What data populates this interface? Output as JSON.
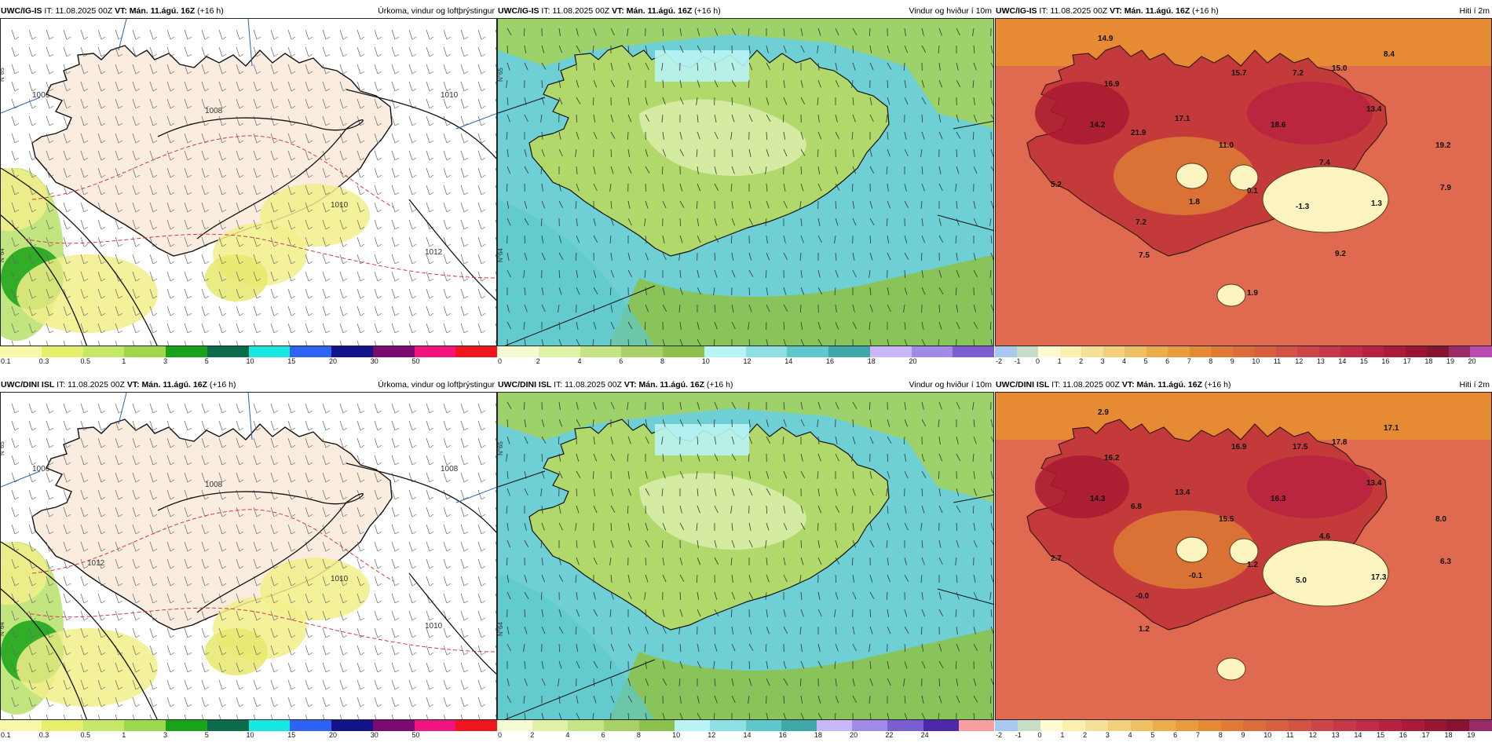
{
  "rows": [
    {
      "model_label": "UWC/IG-IS",
      "it_text": "IT: 11.08.2025 00Z",
      "vt_label": "VT:",
      "vt_text": "Mán. 11.ágú. 16Z",
      "lead_text": "(+16 h)",
      "temp_labels": [
        "14.9",
        "16.9",
        "14.2",
        "21.9",
        "17.1",
        "15.7",
        "7.2",
        "15.0",
        "8.4",
        "13.4",
        "18.6",
        "11.0",
        "19.2",
        "7.4",
        "5.2",
        "1.8",
        "0.1",
        "-1.3",
        "1.3",
        "7.9",
        "7.2",
        "7.5",
        "9.2",
        "1.9"
      ],
      "isobar_labels": [
        "1006",
        "1008",
        "1010",
        "1010",
        "1012"
      ]
    },
    {
      "model_label": "UWC/DINI ISL",
      "it_text": "IT: 11.08.2025 00Z",
      "vt_label": "VT:",
      "vt_text": "Mán. 11.ágú. 16Z",
      "lead_text": "(+16 h)",
      "temp_labels": [
        "2.9",
        "16.2",
        "14.3",
        "6.8",
        "13.4",
        "16.9",
        "17.5",
        "17.8",
        "17.1",
        "13.4",
        "16.3",
        "15.5",
        "8.0",
        "4.6",
        "2.7",
        "-0.1",
        "1.2",
        "5.0",
        "17.3",
        "6.3",
        "-0.0",
        "1.2"
      ],
      "isobar_labels": [
        "1006",
        "1008",
        "1008",
        "1010",
        "1010",
        "1012"
      ]
    }
  ],
  "columns": [
    {
      "field_title": "Úrkoma, vindur og loftþrýstingur",
      "colorbar": {
        "labels": [
          "0.1",
          "0.3",
          "0.5",
          "1",
          "3",
          "5",
          "10",
          "15",
          "20",
          "30",
          "50"
        ],
        "colors": [
          "#f7f7a8",
          "#e6ee6c",
          "#c6e86a",
          "#9ed84c",
          "#18a318",
          "#0b6b4a",
          "#17e8e0",
          "#2d62f2",
          "#14148a",
          "#7a0a70",
          "#f01480",
          "#f0141e"
        ]
      }
    },
    {
      "field_title": "Vindur og hviður í 10m",
      "colorbar_top": {
        "labels": [
          "0",
          "2",
          "4",
          "6",
          "8",
          "10",
          "12",
          "14",
          "16",
          "18",
          "20"
        ],
        "colors": [
          "#f4fbd2",
          "#dff2a8",
          "#c4e486",
          "#a8d268",
          "#8cc24c",
          "#b8f4f4",
          "#8ee0e6",
          "#5ec8cc",
          "#3ea8aa",
          "#c8b8f8",
          "#a08ae8",
          "#7a5ed2"
        ]
      },
      "colorbar_bottom": {
        "labels": [
          "0",
          "2",
          "4",
          "6",
          "8",
          "10",
          "12",
          "14",
          "16",
          "18",
          "20",
          "22",
          "24"
        ],
        "colors": [
          "#f4fbd2",
          "#dff2a8",
          "#c4e486",
          "#a8d268",
          "#8cc24c",
          "#b8f4f4",
          "#8ee0e6",
          "#5ec8cc",
          "#3ea8aa",
          "#c8b8f8",
          "#a08ae8",
          "#7a5ed2",
          "#4a2aa8",
          "#f8a0a0"
        ]
      }
    },
    {
      "field_title": "Hiti í 2m",
      "colorbar_top": {
        "labels": [
          "-2",
          "-1",
          "0",
          "1",
          "2",
          "3",
          "4",
          "5",
          "6",
          "7",
          "8",
          "9",
          "10",
          "11",
          "12",
          "13",
          "14",
          "15",
          "16",
          "17",
          "18",
          "19",
          "20"
        ],
        "colors": [
          "#a8c8f0",
          "#c8dcc8",
          "#fffbd0",
          "#fcf0b0",
          "#f6e096",
          "#f2d07c",
          "#eec064",
          "#ecae4c",
          "#e89c3c",
          "#e48a34",
          "#e07a34",
          "#dc6c3a",
          "#d86040",
          "#d25244",
          "#cc4448",
          "#c6384a",
          "#c02c46",
          "#b82240",
          "#ac1a3a",
          "#981634",
          "#861430",
          "#9a2a6a",
          "#b84ab0"
        ]
      },
      "colorbar_bottom": {
        "labels": [
          "-2",
          "-1",
          "0",
          "1",
          "2",
          "3",
          "4",
          "5",
          "6",
          "7",
          "8",
          "9",
          "10",
          "11",
          "12",
          "13",
          "14",
          "15",
          "16",
          "17",
          "18",
          "19"
        ],
        "colors": [
          "#a8c8f0",
          "#c8dcc8",
          "#fffbd0",
          "#fcf0b0",
          "#f6e096",
          "#f2d07c",
          "#eec064",
          "#ecae4c",
          "#e89c3c",
          "#e48a34",
          "#e07a34",
          "#dc6c3a",
          "#d86040",
          "#d25244",
          "#cc4448",
          "#c6384a",
          "#c02c46",
          "#b82240",
          "#ac1a3a",
          "#981634",
          "#861430",
          "#9a2a6a"
        ]
      }
    }
  ],
  "lat_labels": [
    "N°65",
    "N°64"
  ],
  "colors": {
    "land_precip": "#fbece0",
    "sea_precip": "#ffffff",
    "isobar": "#111111",
    "temp_contour": "#d43a3a",
    "coastline": "#111111",
    "wind_land": "#b0d86a",
    "wind_sea": "#6ed0d4",
    "temp_warm": "#c43a3a",
    "temp_sea": "#e06a50",
    "temp_glacier": "#fbf3c0"
  }
}
